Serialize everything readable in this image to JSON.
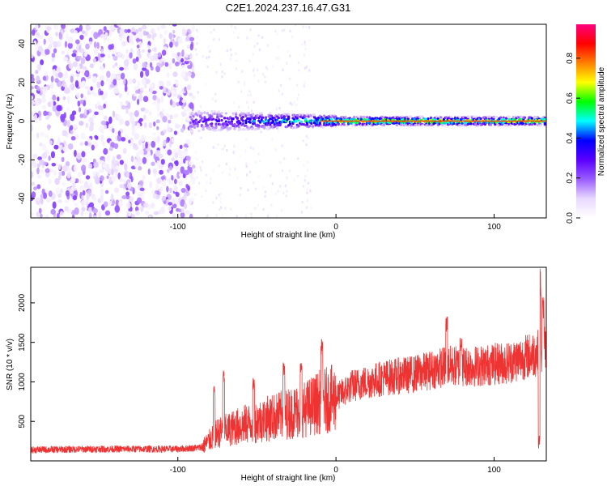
{
  "chart_data": [
    {
      "type": "heatmap",
      "title": "C2E1.2024.237.16.47.G31",
      "xlabel": "Height of straight line (km)",
      "ylabel": "Frequency (Hz)",
      "xlim": [
        -193,
        133
      ],
      "ylim": [
        -50,
        50
      ],
      "xticks": [
        -100,
        0,
        100
      ],
      "yticks": [
        -40,
        -20,
        0,
        20,
        40
      ],
      "grid": false,
      "colorbar": {
        "label": "Normalized spectral amplitude",
        "range": [
          0,
          0.97
        ],
        "ticks": [
          0.0,
          0.2,
          0.4,
          0.6,
          0.8
        ],
        "colormap": [
          "#ffffff",
          "#e8d8ff",
          "#9a5cff",
          "#5a00ff",
          "#0000ff",
          "#00ffff",
          "#00ff00",
          "#ffff00",
          "#ff8000",
          "#ff0000",
          "#ff0080"
        ]
      },
      "features": {
        "noise_region_x": [
          -193,
          -90
        ],
        "signal_start_x": -92,
        "signal_freq_hz": 0
      }
    },
    {
      "type": "line",
      "title": "",
      "xlabel": "Height of straight line (km)",
      "ylabel": "SNR (10 * v/v)",
      "xlim": [
        -193,
        133
      ],
      "ylim": [
        0,
        2450
      ],
      "xticks": [
        -100,
        0,
        100
      ],
      "yticks": [
        500,
        1000,
        1500,
        2000
      ],
      "grid": false,
      "color": "#ee3333",
      "trend": {
        "x": [
          -193,
          -150,
          -100,
          -85,
          -75,
          -60,
          -40,
          -20,
          -10,
          0,
          10,
          30,
          50,
          70,
          90,
          110,
          125,
          133
        ],
        "y": [
          140,
          150,
          150,
          170,
          350,
          450,
          550,
          650,
          750,
          800,
          950,
          1050,
          1100,
          1200,
          1200,
          1250,
          1350,
          1400
        ]
      },
      "spikes": {
        "x": [
          -77,
          -71,
          -52,
          -33,
          -22,
          -9,
          70,
          79,
          129,
          131
        ],
        "y": [
          950,
          1150,
          1050,
          1250,
          1250,
          1550,
          1850,
          1600,
          2450,
          2100
        ]
      }
    }
  ]
}
